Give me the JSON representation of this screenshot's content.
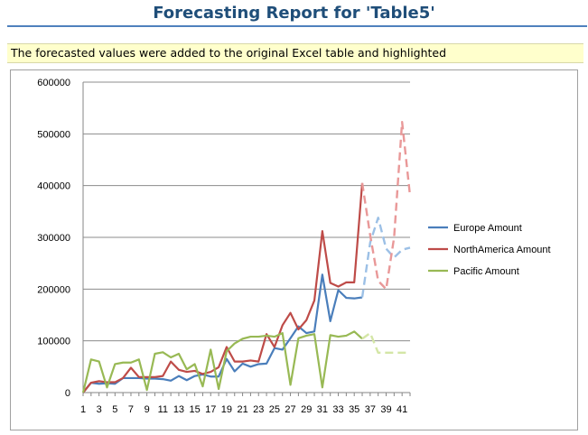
{
  "report": {
    "title": "Forecasting Report for 'Table5'",
    "note": "The forecasted values were added to the original Excel table and highlighted"
  },
  "chart_data": {
    "type": "line",
    "ylim": [
      0,
      600000
    ],
    "yticks": [
      0,
      100000,
      200000,
      300000,
      400000,
      500000,
      600000
    ],
    "xtick_labels": [
      "1",
      "3",
      "5",
      "7",
      "9",
      "11",
      "13",
      "15",
      "17",
      "19",
      "21",
      "23",
      "25",
      "27",
      "29",
      "31",
      "33",
      "35",
      "37",
      "39",
      "41"
    ],
    "x_count": 42,
    "forecast_start_index": 36,
    "grid": true,
    "legend_position": "right",
    "series": [
      {
        "name": "Europe Amount",
        "color": "#4a7ebb",
        "forecast_color": "#9cc0e6",
        "values": [
          0,
          19000,
          17000,
          18000,
          17000,
          28000,
          28000,
          28000,
          27000,
          27000,
          26000,
          23000,
          32000,
          24000,
          32000,
          35000,
          31000,
          31000,
          65000,
          41000,
          56000,
          50000,
          55000,
          56000,
          86000,
          83000,
          105000,
          128000,
          115000,
          118000,
          228000,
          138000,
          198000,
          183000,
          182000,
          184000,
          290000,
          338000,
          278000,
          261000,
          276000,
          280000
        ]
      },
      {
        "name": "NorthAmerica Amount",
        "color": "#be4b48",
        "forecast_color": "#e99898",
        "values": [
          0,
          19000,
          22000,
          20000,
          20000,
          28000,
          48000,
          30000,
          30000,
          30000,
          32000,
          60000,
          44000,
          40000,
          42000,
          36000,
          40000,
          49000,
          88000,
          60000,
          60000,
          62000,
          60000,
          113000,
          88000,
          130000,
          154000,
          122000,
          140000,
          178000,
          312000,
          212000,
          205000,
          213000,
          213000,
          405000,
          304000,
          216000,
          200000,
          300000,
          523000,
          380000
        ]
      },
      {
        "name": "Pacific Amount",
        "color": "#98b954",
        "forecast_color": "#d4e6a6",
        "values": [
          0,
          64000,
          60000,
          10000,
          55000,
          58000,
          58000,
          64000,
          5000,
          75000,
          78000,
          68000,
          75000,
          45000,
          55000,
          12000,
          83000,
          7000,
          80000,
          95000,
          104000,
          108000,
          108000,
          110000,
          108000,
          115000,
          15000,
          105000,
          110000,
          113000,
          10000,
          111000,
          108000,
          110000,
          118000,
          104000,
          115000,
          77000,
          77000,
          77000,
          77000,
          77000
        ]
      }
    ]
  }
}
